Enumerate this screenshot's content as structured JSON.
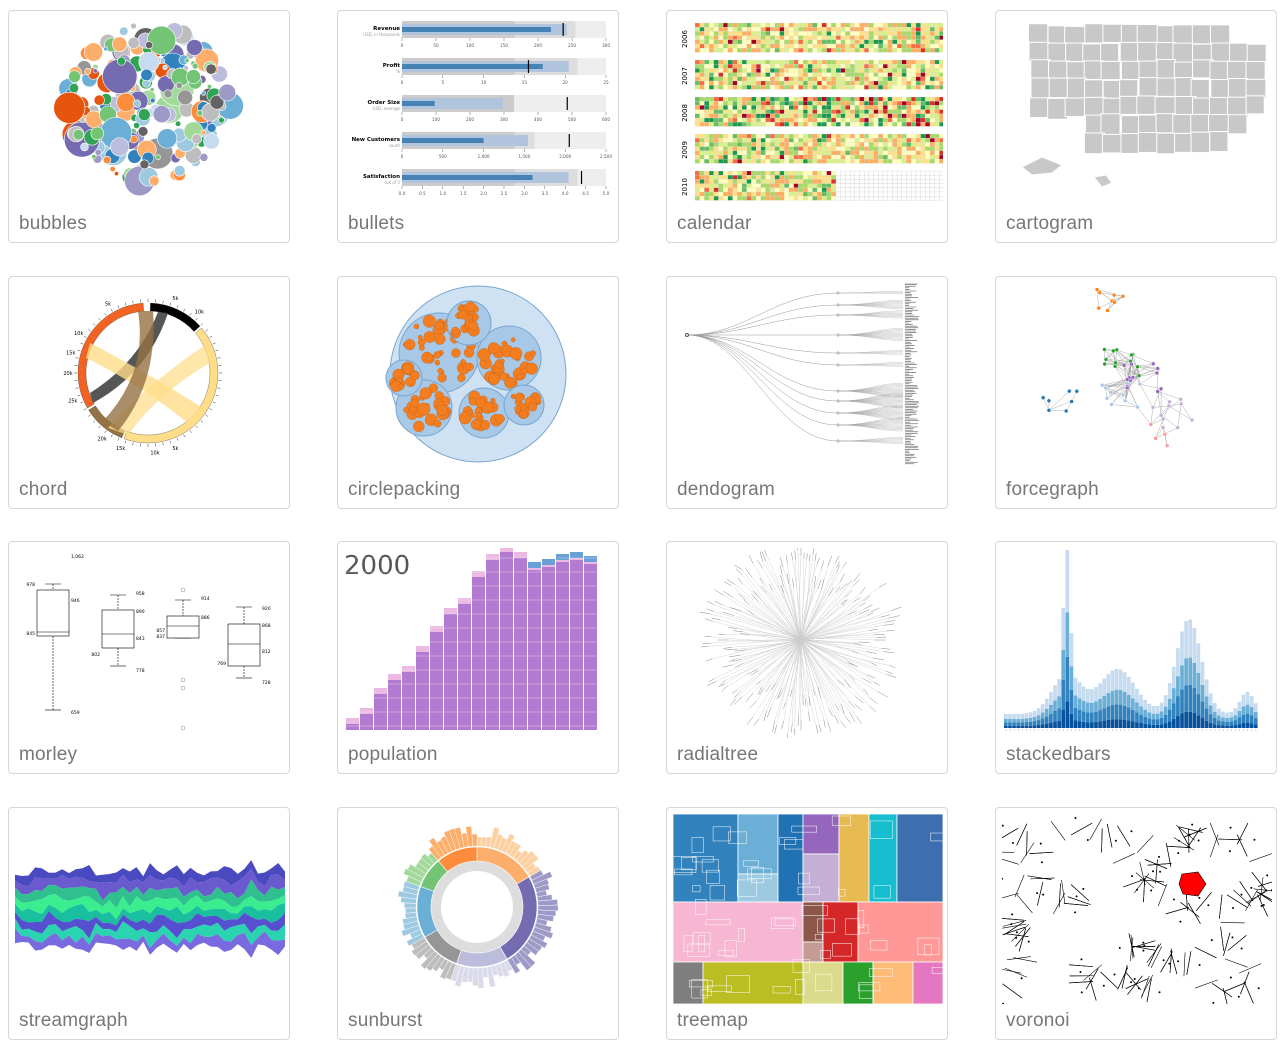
{
  "gallery": {
    "items": [
      {
        "label": "bubbles"
      },
      {
        "label": "bullets"
      },
      {
        "label": "calendar"
      },
      {
        "label": "cartogram"
      },
      {
        "label": "chord"
      },
      {
        "label": "circlepacking"
      },
      {
        "label": "dendogram"
      },
      {
        "label": "forcegraph"
      },
      {
        "label": "morley"
      },
      {
        "label": "population"
      },
      {
        "label": "radialtree"
      },
      {
        "label": "stackedbars"
      },
      {
        "label": "streamgraph"
      },
      {
        "label": "sunburst"
      },
      {
        "label": "treemap"
      },
      {
        "label": "voronoi"
      }
    ]
  },
  "bullets": {
    "rows": [
      {
        "title": "Revenue",
        "subtitle": "USD, in thousands",
        "ticks": [
          "0",
          "50",
          "100",
          "150",
          "200",
          "250",
          "300"
        ]
      },
      {
        "title": "Profit",
        "subtitle": "%",
        "ticks": [
          "0",
          "5",
          "10",
          "15",
          "20",
          "25"
        ]
      },
      {
        "title": "Order Size",
        "subtitle": "USD, average",
        "ticks": [
          "0",
          "100",
          "200",
          "300",
          "400",
          "500",
          "600"
        ]
      },
      {
        "title": "New Customers",
        "subtitle": "count",
        "ticks": [
          "0",
          "500",
          "1,000",
          "1,500",
          "2,000",
          "2,500"
        ]
      },
      {
        "title": "Satisfaction",
        "subtitle": "out of 5",
        "ticks": [
          "0.0",
          "0.5",
          "1.0",
          "1.5",
          "2.0",
          "2.5",
          "3.0",
          "3.5",
          "4.0",
          "4.5",
          "5.0"
        ]
      }
    ]
  },
  "calendar": {
    "years": [
      "2006",
      "2007",
      "2008",
      "2009",
      "2010"
    ]
  },
  "chord": {
    "tick_labels": [
      "5k",
      "10k",
      "15k",
      "20k",
      "25k",
      "5k",
      "10k",
      "5k",
      "10k",
      "15k",
      "20k"
    ]
  },
  "morley": {
    "labels": [
      "1,062",
      "978",
      "946",
      "845",
      "659",
      "958",
      "890",
      "843",
      "802",
      "778",
      "886",
      "914",
      "857",
      "837",
      "868",
      "920",
      "812",
      "769",
      "728"
    ]
  },
  "population": {
    "year": "2000"
  },
  "colors": {
    "accent_orange": "#f47d20",
    "label_gray": "#777777",
    "border": "#d6d6d6",
    "voronoi_highlight": "#ff0000"
  }
}
